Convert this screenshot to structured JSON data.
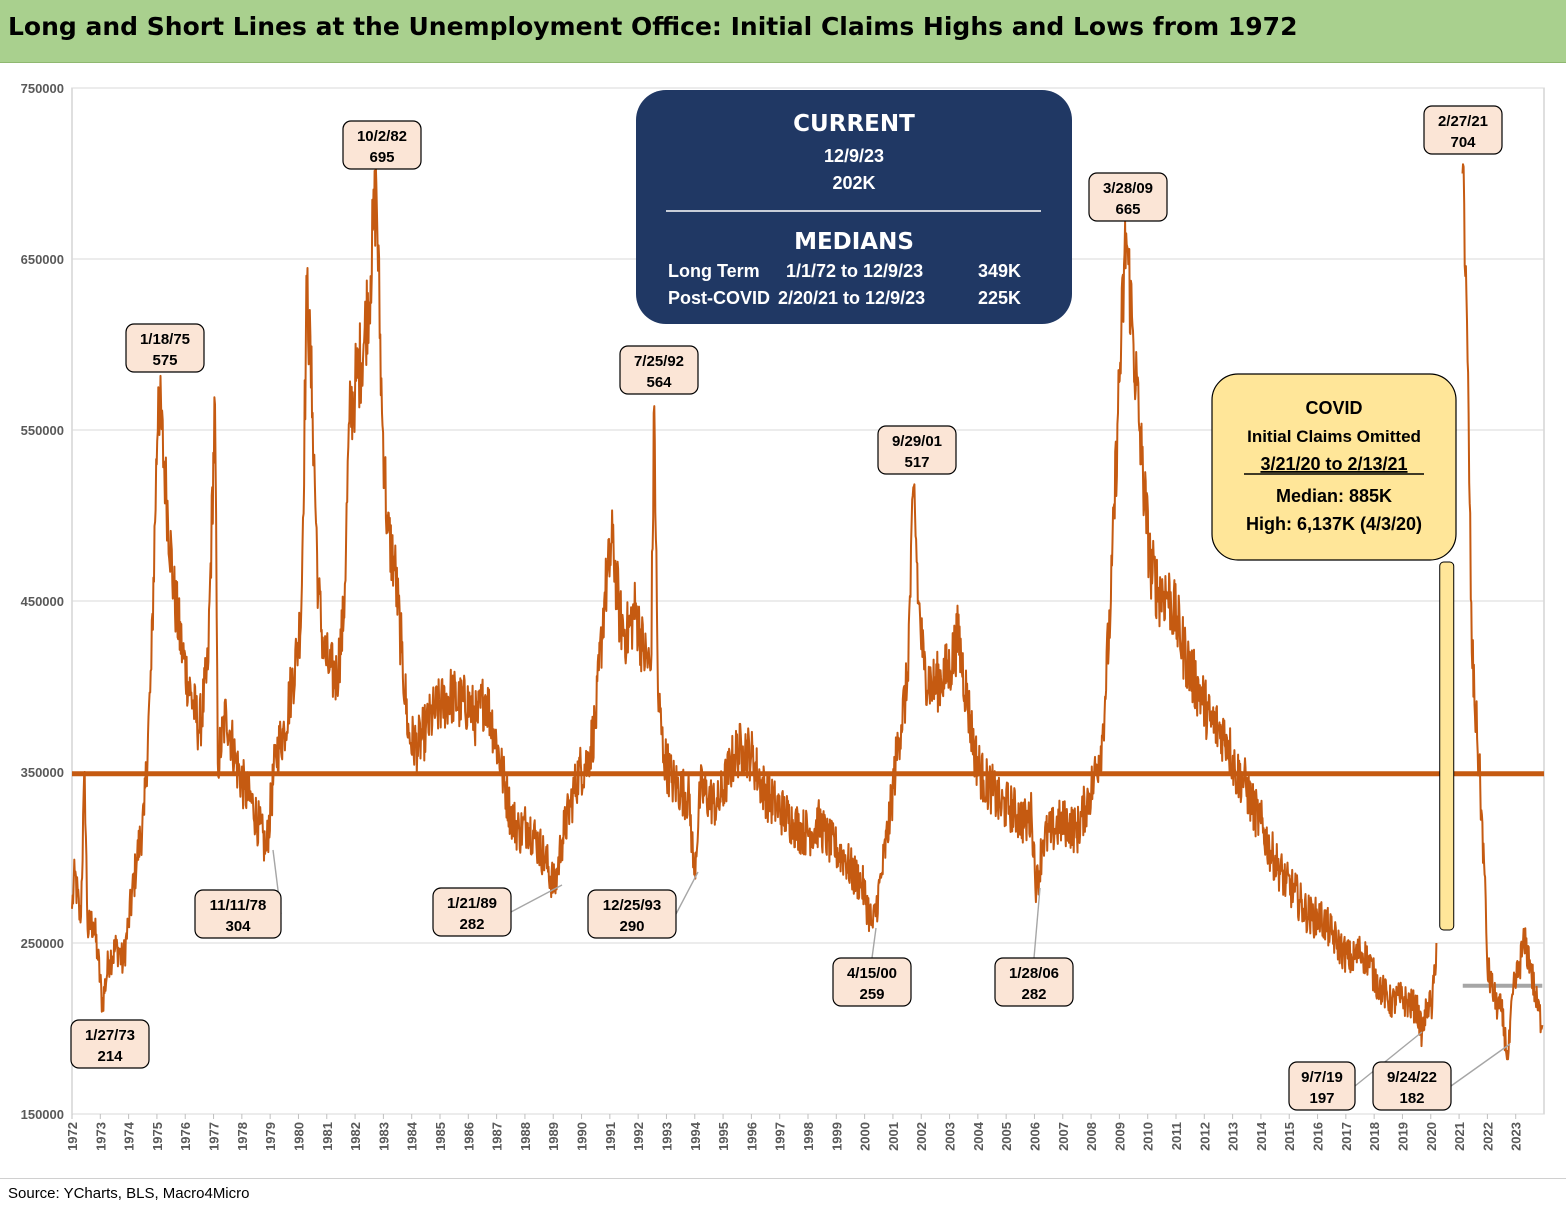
{
  "title": "Long and Short Lines at the Unemployment Office: Initial Claims Highs and Lows from 1972",
  "source": "Source: YCharts, BLS, Macro4Micro",
  "colors": {
    "series": "#c55a11",
    "median_line": "#c55a11",
    "post_covid_median": "#a6a6a6",
    "title_bg": "#a9d08e",
    "current_box": "#203864",
    "covid_box": "#ffe699",
    "label_box": "#fbe5d6"
  },
  "current_box": {
    "heading": "CURRENT",
    "date": "12/9/23",
    "value": "202K",
    "medians_heading": "MEDIANS",
    "rows": [
      {
        "label": "Long Term",
        "range": "1/1/72 to 12/9/23",
        "value": "349K"
      },
      {
        "label": "Post-COVID",
        "range": "2/20/21 to 12/9/23",
        "value": "225K"
      }
    ]
  },
  "covid_box": {
    "heading": "COVID",
    "subheading": "Initial Claims Omitted",
    "range": "3/21/20 to 2/13/21",
    "median": "Median: 885K",
    "high": "High: 6,137K (4/3/20)"
  },
  "annotations": [
    {
      "date": "1/27/73",
      "value": "214",
      "kind": "low"
    },
    {
      "date": "1/18/75",
      "value": "575",
      "kind": "high"
    },
    {
      "date": "11/11/78",
      "value": "304",
      "kind": "low"
    },
    {
      "date": "10/2/82",
      "value": "695",
      "kind": "high"
    },
    {
      "date": "1/21/89",
      "value": "282",
      "kind": "low"
    },
    {
      "date": "7/25/92",
      "value": "564",
      "kind": "high"
    },
    {
      "date": "12/25/93",
      "value": "290",
      "kind": "low"
    },
    {
      "date": "4/15/00",
      "value": "259",
      "kind": "low"
    },
    {
      "date": "9/29/01",
      "value": "517",
      "kind": "high"
    },
    {
      "date": "1/28/06",
      "value": "282",
      "kind": "low"
    },
    {
      "date": "3/28/09",
      "value": "665",
      "kind": "high"
    },
    {
      "date": "9/7/19",
      "value": "197",
      "kind": "low"
    },
    {
      "date": "2/27/21",
      "value": "704",
      "kind": "high"
    },
    {
      "date": "9/24/22",
      "value": "182",
      "kind": "low"
    }
  ],
  "chart_data": {
    "type": "line",
    "title": "Long and Short Lines at the Unemployment Office: Initial Claims Highs and Lows from 1972",
    "xlabel": "",
    "ylabel": "",
    "ylim": [
      150000,
      750000
    ],
    "xlim": [
      1972,
      2024
    ],
    "y_ticks": [
      "150000",
      "250000",
      "350000",
      "450000",
      "550000",
      "650000",
      "750000"
    ],
    "x_ticks": [
      "1972",
      "1973",
      "1974",
      "1975",
      "1976",
      "1977",
      "1978",
      "1979",
      "1980",
      "1981",
      "1982",
      "1983",
      "1984",
      "1985",
      "1986",
      "1987",
      "1988",
      "1989",
      "1990",
      "1991",
      "1992",
      "1993",
      "1994",
      "1995",
      "1996",
      "1997",
      "1998",
      "1999",
      "2000",
      "2001",
      "2002",
      "2003",
      "2004",
      "2005",
      "2006",
      "2007",
      "2008",
      "2009",
      "2010",
      "2011",
      "2012",
      "2013",
      "2014",
      "2015",
      "2016",
      "2017",
      "2018",
      "2019",
      "2020",
      "2021",
      "2022",
      "2023"
    ],
    "grid": true,
    "legend": "none",
    "reference_lines": [
      {
        "value": 349000,
        "from": 1972,
        "to": 2024
      },
      {
        "value": 225000,
        "from": 2021.13,
        "to": 2023.94
      }
    ],
    "covid_gap": {
      "from": 2020.22,
      "to": 2021.12
    },
    "series": [
      {
        "values": [
          [
            1972.0,
            270000
          ],
          [
            1972.1,
            290000
          ],
          [
            1972.3,
            262000
          ],
          [
            1972.45,
            350000
          ],
          [
            1972.55,
            258000
          ],
          [
            1972.75,
            262000
          ],
          [
            1972.9,
            245000
          ],
          [
            1973.07,
            214000
          ],
          [
            1973.3,
            240000
          ],
          [
            1973.6,
            248000
          ],
          [
            1973.8,
            238000
          ],
          [
            1974.0,
            262000
          ],
          [
            1974.3,
            300000
          ],
          [
            1974.55,
            325000
          ],
          [
            1974.8,
            410000
          ],
          [
            1975.05,
            575000
          ],
          [
            1975.3,
            520000
          ],
          [
            1975.6,
            455000
          ],
          [
            1975.9,
            420000
          ],
          [
            1976.2,
            395000
          ],
          [
            1976.5,
            375000
          ],
          [
            1976.8,
            410000
          ],
          [
            1977.05,
            565000
          ],
          [
            1977.15,
            355000
          ],
          [
            1977.45,
            385000
          ],
          [
            1977.8,
            355000
          ],
          [
            1978.1,
            340000
          ],
          [
            1978.4,
            330000
          ],
          [
            1978.86,
            304000
          ],
          [
            1979.2,
            360000
          ],
          [
            1979.5,
            375000
          ],
          [
            1979.75,
            400000
          ],
          [
            1979.95,
            420000
          ],
          [
            1980.1,
            445000
          ],
          [
            1980.3,
            635000
          ],
          [
            1980.5,
            560000
          ],
          [
            1980.7,
            455000
          ],
          [
            1980.9,
            420000
          ],
          [
            1981.1,
            410000
          ],
          [
            1981.35,
            405000
          ],
          [
            1981.6,
            440000
          ],
          [
            1981.8,
            555000
          ],
          [
            1982.0,
            575000
          ],
          [
            1982.3,
            600000
          ],
          [
            1982.55,
            640000
          ],
          [
            1982.75,
            695000
          ],
          [
            1982.95,
            560000
          ],
          [
            1983.15,
            490000
          ],
          [
            1983.4,
            470000
          ],
          [
            1983.65,
            420000
          ],
          [
            1983.9,
            370000
          ],
          [
            1984.2,
            365000
          ],
          [
            1984.5,
            375000
          ],
          [
            1984.8,
            385000
          ],
          [
            1985.1,
            390000
          ],
          [
            1985.4,
            395000
          ],
          [
            1985.7,
            390000
          ],
          [
            1986.0,
            390000
          ],
          [
            1986.3,
            380000
          ],
          [
            1986.6,
            395000
          ],
          [
            1986.9,
            375000
          ],
          [
            1987.2,
            350000
          ],
          [
            1987.5,
            325000
          ],
          [
            1987.8,
            315000
          ],
          [
            1988.1,
            320000
          ],
          [
            1988.4,
            310000
          ],
          [
            1988.7,
            300000
          ],
          [
            1989.06,
            282000
          ],
          [
            1989.3,
            310000
          ],
          [
            1989.6,
            330000
          ],
          [
            1989.9,
            350000
          ],
          [
            1990.2,
            355000
          ],
          [
            1990.5,
            380000
          ],
          [
            1990.8,
            450000
          ],
          [
            1991.1,
            485000
          ],
          [
            1991.35,
            440000
          ],
          [
            1991.6,
            430000
          ],
          [
            1991.9,
            445000
          ],
          [
            1992.2,
            420000
          ],
          [
            1992.45,
            410000
          ],
          [
            1992.57,
            564000
          ],
          [
            1992.7,
            395000
          ],
          [
            1992.9,
            360000
          ],
          [
            1993.2,
            345000
          ],
          [
            1993.5,
            340000
          ],
          [
            1993.8,
            335000
          ],
          [
            1993.98,
            290000
          ],
          [
            1994.2,
            340000
          ],
          [
            1994.5,
            335000
          ],
          [
            1994.8,
            330000
          ],
          [
            1995.1,
            345000
          ],
          [
            1995.4,
            360000
          ],
          [
            1995.7,
            365000
          ],
          [
            1996.0,
            360000
          ],
          [
            1996.3,
            345000
          ],
          [
            1996.6,
            335000
          ],
          [
            1996.9,
            330000
          ],
          [
            1997.2,
            325000
          ],
          [
            1997.5,
            320000
          ],
          [
            1997.8,
            315000
          ],
          [
            1998.1,
            315000
          ],
          [
            1998.4,
            320000
          ],
          [
            1998.7,
            310000
          ],
          [
            1999.0,
            305000
          ],
          [
            1999.3,
            300000
          ],
          [
            1999.6,
            290000
          ],
          [
            1999.9,
            285000
          ],
          [
            2000.29,
            259000
          ],
          [
            2000.6,
            290000
          ],
          [
            2000.9,
            325000
          ],
          [
            2001.2,
            370000
          ],
          [
            2001.5,
            400000
          ],
          [
            2001.74,
            517000
          ],
          [
            2001.9,
            450000
          ],
          [
            2002.1,
            410000
          ],
          [
            2002.4,
            400000
          ],
          [
            2002.7,
            405000
          ],
          [
            2003.0,
            410000
          ],
          [
            2003.3,
            430000
          ],
          [
            2003.6,
            395000
          ],
          [
            2003.9,
            360000
          ],
          [
            2004.2,
            345000
          ],
          [
            2004.5,
            340000
          ],
          [
            2004.8,
            330000
          ],
          [
            2005.1,
            330000
          ],
          [
            2005.4,
            325000
          ],
          [
            2005.7,
            320000
          ],
          [
            2005.9,
            325000
          ],
          [
            2006.07,
            282000
          ],
          [
            2006.3,
            310000
          ],
          [
            2006.6,
            315000
          ],
          [
            2006.9,
            320000
          ],
          [
            2007.2,
            320000
          ],
          [
            2007.5,
            315000
          ],
          [
            2007.8,
            330000
          ],
          [
            2008.1,
            345000
          ],
          [
            2008.4,
            370000
          ],
          [
            2008.7,
            450000
          ],
          [
            2008.95,
            560000
          ],
          [
            2009.24,
            665000
          ],
          [
            2009.5,
            600000
          ],
          [
            2009.8,
            530000
          ],
          [
            2010.1,
            470000
          ],
          [
            2010.4,
            455000
          ],
          [
            2010.7,
            455000
          ],
          [
            2011.0,
            440000
          ],
          [
            2011.3,
            420000
          ],
          [
            2011.6,
            405000
          ],
          [
            2011.9,
            395000
          ],
          [
            2012.2,
            380000
          ],
          [
            2012.5,
            375000
          ],
          [
            2012.8,
            370000
          ],
          [
            2013.1,
            350000
          ],
          [
            2013.4,
            345000
          ],
          [
            2013.7,
            330000
          ],
          [
            2014.0,
            320000
          ],
          [
            2014.3,
            305000
          ],
          [
            2014.6,
            295000
          ],
          [
            2014.9,
            285000
          ],
          [
            2015.2,
            280000
          ],
          [
            2015.5,
            270000
          ],
          [
            2015.8,
            265000
          ],
          [
            2016.1,
            265000
          ],
          [
            2016.4,
            258000
          ],
          [
            2016.7,
            250000
          ],
          [
            2016.9,
            245000
          ],
          [
            2017.2,
            240000
          ],
          [
            2017.5,
            245000
          ],
          [
            2017.8,
            240000
          ],
          [
            2018.0,
            230000
          ],
          [
            2018.3,
            222000
          ],
          [
            2018.6,
            215000
          ],
          [
            2018.9,
            218000
          ],
          [
            2019.2,
            215000
          ],
          [
            2019.5,
            212000
          ],
          [
            2019.69,
            197000
          ],
          [
            2019.9,
            215000
          ],
          [
            2020.05,
            212000
          ],
          [
            2020.2,
            250000
          ]
        ]
      },
      {
        "values": [
          [
            2021.12,
            700000
          ],
          [
            2021.16,
            704000
          ],
          [
            2021.22,
            640000
          ],
          [
            2021.3,
            590000
          ],
          [
            2021.45,
            420000
          ],
          [
            2021.6,
            380000
          ],
          [
            2021.75,
            340000
          ],
          [
            2021.9,
            290000
          ],
          [
            2022.0,
            235000
          ],
          [
            2022.15,
            225000
          ],
          [
            2022.3,
            215000
          ],
          [
            2022.5,
            210000
          ],
          [
            2022.73,
            182000
          ],
          [
            2022.9,
            220000
          ],
          [
            2023.1,
            235000
          ],
          [
            2023.3,
            250000
          ],
          [
            2023.5,
            240000
          ],
          [
            2023.7,
            218000
          ],
          [
            2023.94,
            202000
          ]
        ]
      }
    ]
  }
}
